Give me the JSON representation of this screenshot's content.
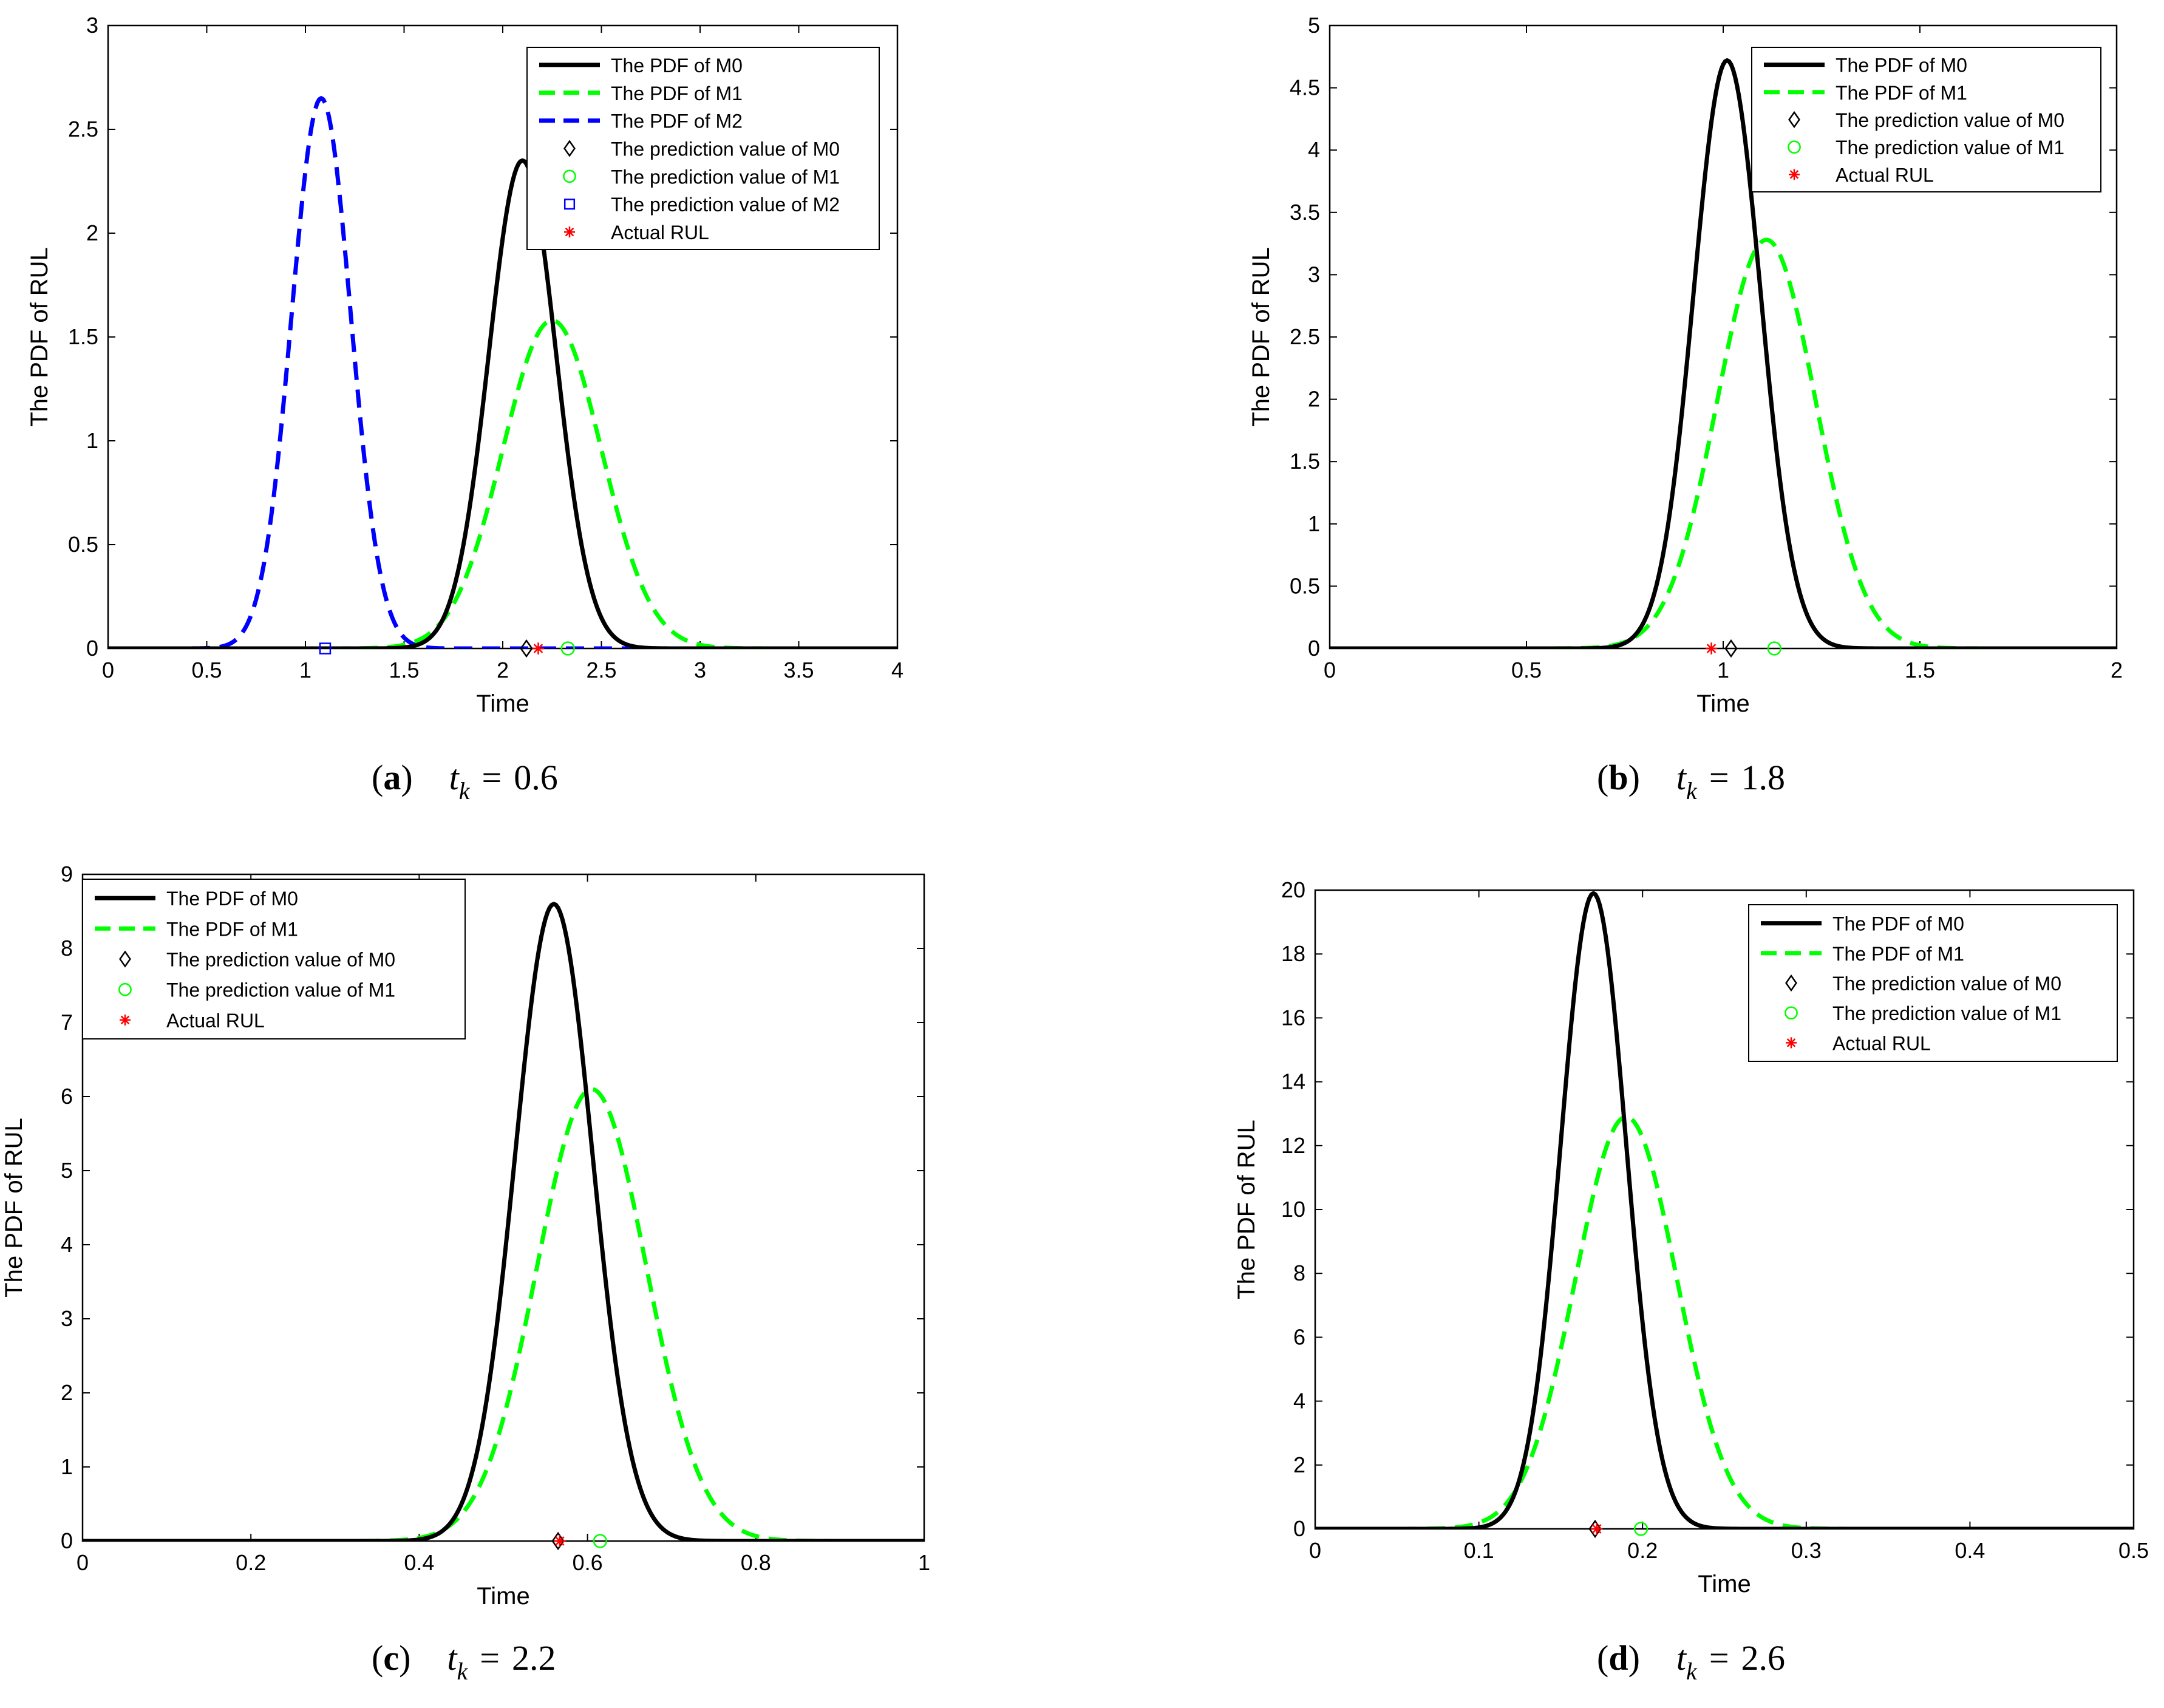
{
  "figure": {
    "panels": [
      {
        "letter": "a",
        "tk_value": "0.6"
      },
      {
        "letter": "b",
        "tk_value": "1.8"
      },
      {
        "letter": "c",
        "tk_value": "2.2"
      },
      {
        "letter": "d",
        "tk_value": "2.6"
      }
    ],
    "caption_t": "t",
    "caption_sub": "k",
    "caption_eq": "="
  },
  "colors": {
    "m0": "#000000",
    "m1": "#00ff00",
    "m2": "#0000ff",
    "actual": "#ff0000"
  },
  "chart_data": [
    {
      "type": "line",
      "panel": "a",
      "xlabel": "Time",
      "ylabel": "The PDF of RUL",
      "xlim": [
        0,
        4
      ],
      "ylim": [
        0,
        3
      ],
      "xticks": [
        0,
        0.5,
        1,
        1.5,
        2,
        2.5,
        3,
        3.5,
        4
      ],
      "yticks": [
        0,
        0.5,
        1,
        1.5,
        2,
        2.5,
        3
      ],
      "xtick_labels": [
        "0",
        "0.5",
        "1",
        "1.5",
        "2",
        "2.5",
        "3",
        "3.5",
        "4"
      ],
      "ytick_labels": [
        "0",
        "0.5",
        "1",
        "1.5",
        "2",
        "2.5",
        "3"
      ],
      "legend_position": "top-right",
      "series": [
        {
          "name": "The PDF of M0",
          "style": "solid",
          "color": "#000000",
          "peak_x": 2.1,
          "peak_y": 2.35,
          "spread": 0.17
        },
        {
          "name": "The PDF of M1",
          "style": "dashed",
          "color": "#00ff00",
          "peak_x": 2.25,
          "peak_y": 1.58,
          "spread": 0.25
        },
        {
          "name": "The PDF of M2",
          "style": "dashed",
          "color": "#0000ff",
          "peak_x": 1.08,
          "peak_y": 2.65,
          "spread": 0.15
        }
      ],
      "markers": [
        {
          "name": "The prediction value of M0",
          "shape": "diamond",
          "color": "#000000",
          "x": 2.12,
          "y": 0
        },
        {
          "name": "The prediction value of M1",
          "shape": "circle",
          "color": "#00ff00",
          "x": 2.33,
          "y": 0
        },
        {
          "name": "The prediction value of M2",
          "shape": "square",
          "color": "#0000ff",
          "x": 1.1,
          "y": 0
        },
        {
          "name": "Actual RUL",
          "shape": "star",
          "color": "#ff0000",
          "x": 2.18,
          "y": 0
        }
      ]
    },
    {
      "type": "line",
      "panel": "b",
      "xlabel": "Time",
      "ylabel": "The PDF of RUL",
      "xlim": [
        0,
        2
      ],
      "ylim": [
        0,
        5
      ],
      "xticks": [
        0,
        0.5,
        1,
        1.5,
        2
      ],
      "yticks": [
        0,
        0.5,
        1,
        1.5,
        2,
        2.5,
        3,
        3.5,
        4,
        4.5,
        5
      ],
      "xtick_labels": [
        "0",
        "0.5",
        "1",
        "1.5",
        "2"
      ],
      "ytick_labels": [
        "0",
        "0.5",
        "1",
        "1.5",
        "2",
        "2.5",
        "3",
        "3.5",
        "4",
        "4.5",
        "5"
      ],
      "legend_position": "top-right",
      "series": [
        {
          "name": "The PDF of M0",
          "style": "solid",
          "color": "#000000",
          "peak_x": 1.01,
          "peak_y": 4.72,
          "spread": 0.085
        },
        {
          "name": "The PDF of M1",
          "style": "dashed",
          "color": "#00ff00",
          "peak_x": 1.11,
          "peak_y": 3.28,
          "spread": 0.125
        }
      ],
      "markers": [
        {
          "name": "The prediction value of M0",
          "shape": "diamond",
          "color": "#000000",
          "x": 1.02,
          "y": 0
        },
        {
          "name": "The prediction value of M1",
          "shape": "circle",
          "color": "#00ff00",
          "x": 1.13,
          "y": 0
        },
        {
          "name": "Actual RUL",
          "shape": "star",
          "color": "#ff0000",
          "x": 0.97,
          "y": 0
        }
      ]
    },
    {
      "type": "line",
      "panel": "c",
      "xlabel": "Time",
      "ylabel": "The PDF of RUL",
      "xlim": [
        0,
        1
      ],
      "ylim": [
        0,
        9
      ],
      "xticks": [
        0,
        0.2,
        0.4,
        0.6,
        0.8,
        1
      ],
      "yticks": [
        0,
        1,
        2,
        3,
        4,
        5,
        6,
        7,
        8,
        9
      ],
      "xtick_labels": [
        "0",
        "0.2",
        "0.4",
        "0.6",
        "0.8",
        "1"
      ],
      "ytick_labels": [
        "0",
        "1",
        "2",
        "3",
        "4",
        "5",
        "6",
        "7",
        "8",
        "9"
      ],
      "legend_position": "top-left",
      "series": [
        {
          "name": "The PDF of M0",
          "style": "solid",
          "color": "#000000",
          "peak_x": 0.56,
          "peak_y": 8.6,
          "spread": 0.046
        },
        {
          "name": "The PDF of M1",
          "style": "dashed",
          "color": "#00ff00",
          "peak_x": 0.605,
          "peak_y": 6.1,
          "spread": 0.065
        }
      ],
      "markers": [
        {
          "name": "The prediction value of M0",
          "shape": "diamond",
          "color": "#000000",
          "x": 0.565,
          "y": 0
        },
        {
          "name": "The prediction value of M1",
          "shape": "circle",
          "color": "#00ff00",
          "x": 0.615,
          "y": 0
        },
        {
          "name": "Actual RUL",
          "shape": "star",
          "color": "#ff0000",
          "x": 0.567,
          "y": 0
        }
      ]
    },
    {
      "type": "line",
      "panel": "d",
      "xlabel": "Time",
      "ylabel": "The PDF of RUL",
      "xlim": [
        0,
        0.5
      ],
      "ylim": [
        0,
        20
      ],
      "xticks": [
        0,
        0.1,
        0.2,
        0.3,
        0.4,
        0.5
      ],
      "yticks": [
        0,
        2,
        4,
        6,
        8,
        10,
        12,
        14,
        16,
        18,
        20
      ],
      "xtick_labels": [
        "0",
        "0.1",
        "0.2",
        "0.3",
        "0.4",
        "0.5"
      ],
      "ytick_labels": [
        "0",
        "2",
        "4",
        "6",
        "8",
        "10",
        "12",
        "14",
        "16",
        "18",
        "20"
      ],
      "legend_position": "top-right",
      "series": [
        {
          "name": "The PDF of M0",
          "style": "solid",
          "color": "#000000",
          "peak_x": 0.17,
          "peak_y": 19.9,
          "spread": 0.02
        },
        {
          "name": "The PDF of M1",
          "style": "dashed",
          "color": "#00ff00",
          "peak_x": 0.19,
          "peak_y": 12.9,
          "spread": 0.031
        }
      ],
      "markers": [
        {
          "name": "The prediction value of M0",
          "shape": "diamond",
          "color": "#000000",
          "x": 0.171,
          "y": 0
        },
        {
          "name": "The prediction value of M1",
          "shape": "circle",
          "color": "#00ff00",
          "x": 0.199,
          "y": 0
        },
        {
          "name": "Actual RUL",
          "shape": "star",
          "color": "#ff0000",
          "x": 0.172,
          "y": 0
        }
      ]
    }
  ]
}
